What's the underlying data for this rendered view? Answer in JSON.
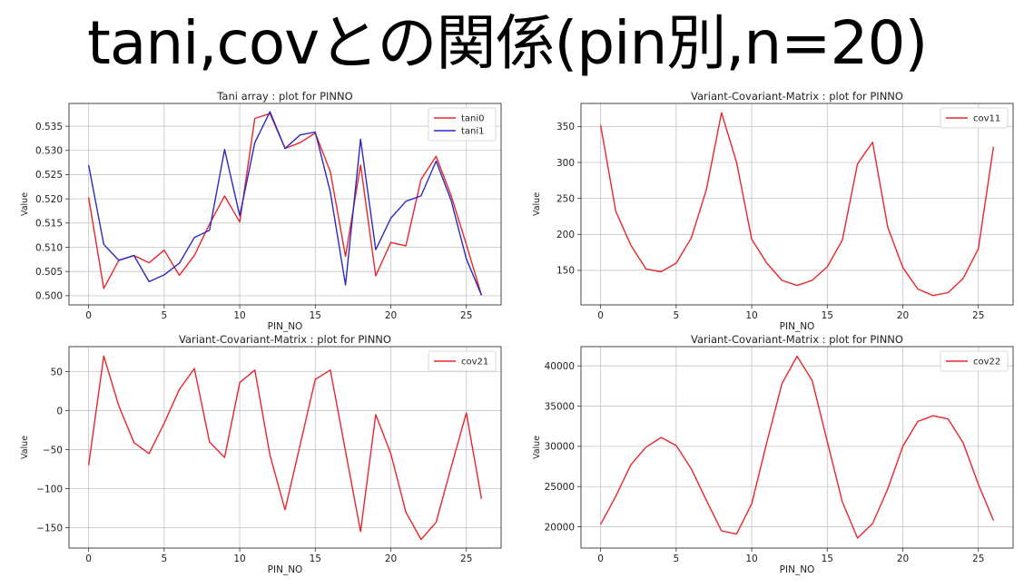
{
  "slide": {
    "title": "tani,covとの関係(pin別,n=20)"
  },
  "chart_data": [
    {
      "type": "line",
      "title": "Tani array : plot for PINNO",
      "xlabel": "PIN_NO",
      "ylabel": "Value",
      "xlim": [
        -1.3,
        27.3
      ],
      "ylim": [
        0.4981,
        0.5397
      ],
      "xticks": [
        0,
        5,
        10,
        15,
        20,
        25
      ],
      "yticks": [
        0.5,
        0.505,
        0.51,
        0.515,
        0.52,
        0.525,
        0.53,
        0.535
      ],
      "ytick_decimals": 3,
      "grid": true,
      "legend": "top-right",
      "x": [
        0,
        1,
        2,
        3,
        4,
        5,
        6,
        7,
        8,
        9,
        10,
        11,
        12,
        13,
        14,
        15,
        16,
        17,
        18,
        19,
        20,
        21,
        22,
        23,
        24,
        25,
        26
      ],
      "series": [
        {
          "name": "tani0",
          "color": "#e8262c",
          "values": [
            0.5203,
            0.5015,
            0.5073,
            0.5083,
            0.5068,
            0.5094,
            0.5042,
            0.5083,
            0.5148,
            0.5206,
            0.5152,
            0.5366,
            0.5376,
            0.5304,
            0.5316,
            0.5336,
            0.5256,
            0.5081,
            0.527,
            0.5041,
            0.511,
            0.5103,
            0.524,
            0.5288,
            0.5206,
            0.5106,
            0.5001
          ]
        },
        {
          "name": "tani1",
          "color": "#2a2ac2",
          "values": [
            0.527,
            0.5106,
            0.5073,
            0.5083,
            0.5029,
            0.5043,
            0.5067,
            0.512,
            0.5135,
            0.5302,
            0.5165,
            0.5316,
            0.538,
            0.5304,
            0.5332,
            0.5338,
            0.5214,
            0.5022,
            0.5323,
            0.5095,
            0.516,
            0.5195,
            0.5206,
            0.5278,
            0.5196,
            0.5076,
            0.5001
          ]
        }
      ]
    },
    {
      "type": "line",
      "title": "Variant-Covariant-Matrix : plot for PINNO",
      "xlabel": "PIN_NO",
      "ylabel": "Value",
      "xlim": [
        -1.3,
        27.3
      ],
      "ylim": [
        102,
        382
      ],
      "xticks": [
        0,
        5,
        10,
        15,
        20,
        25
      ],
      "yticks": [
        150,
        200,
        250,
        300,
        350
      ],
      "ytick_decimals": 0,
      "grid": true,
      "legend": "top-right",
      "x": [
        0,
        1,
        2,
        3,
        4,
        5,
        6,
        7,
        8,
        9,
        10,
        11,
        12,
        13,
        14,
        15,
        16,
        17,
        18,
        19,
        20,
        21,
        22,
        23,
        24,
        25,
        26
      ],
      "series": [
        {
          "name": "cov11",
          "color": "#e8262c",
          "values": [
            352,
            232,
            185,
            152,
            148,
            160,
            195,
            262,
            369,
            300,
            193,
            160,
            136,
            129,
            136,
            155,
            192,
            298,
            328,
            210,
            154,
            124,
            115,
            119,
            139,
            180,
            322
          ]
        }
      ]
    },
    {
      "type": "line",
      "title": "Variant-Covariant-Matrix : plot for PINNO",
      "xlabel": "PIN_NO",
      "ylabel": "Value",
      "xlim": [
        -1.3,
        27.3
      ],
      "ylim": [
        -176,
        82
      ],
      "xticks": [
        0,
        5,
        10,
        15,
        20,
        25
      ],
      "yticks": [
        -150,
        -100,
        -50,
        0,
        50
      ],
      "ytick_decimals": 0,
      "grid": true,
      "legend": "top-right",
      "x": [
        0,
        1,
        2,
        3,
        4,
        5,
        6,
        7,
        8,
        9,
        10,
        11,
        12,
        13,
        14,
        15,
        16,
        17,
        18,
        19,
        20,
        21,
        22,
        23,
        24,
        25,
        26
      ],
      "series": [
        {
          "name": "cov21",
          "color": "#e8262c",
          "values": [
            -70,
            70,
            6,
            -41,
            -55,
            -16,
            27,
            54,
            -40,
            -60,
            36,
            52,
            -57,
            -127,
            -44,
            40,
            52,
            -52,
            -155,
            -5,
            -55,
            -130,
            -165,
            -143,
            -72,
            -3,
            -113
          ]
        }
      ]
    },
    {
      "type": "line",
      "title": "Variant-Covariant-Matrix : plot for PINNO",
      "xlabel": "PIN_NO",
      "ylabel": "Value",
      "xlim": [
        -1.3,
        27.3
      ],
      "ylim": [
        17360,
        42390
      ],
      "xticks": [
        0,
        5,
        10,
        15,
        20,
        25
      ],
      "yticks": [
        20000,
        25000,
        30000,
        35000,
        40000
      ],
      "ytick_decimals": 0,
      "grid": true,
      "legend": "top-right",
      "x": [
        0,
        1,
        2,
        3,
        4,
        5,
        6,
        7,
        8,
        9,
        10,
        11,
        12,
        13,
        14,
        15,
        16,
        17,
        18,
        19,
        20,
        21,
        22,
        23,
        24,
        25,
        26
      ],
      "series": [
        {
          "name": "cov22",
          "color": "#e8262c",
          "values": [
            20300,
            23800,
            27700,
            29900,
            31100,
            30100,
            27200,
            23300,
            19500,
            19100,
            22900,
            30500,
            37800,
            41200,
            38200,
            30600,
            23100,
            18600,
            20400,
            24700,
            30000,
            33100,
            33800,
            33400,
            30400,
            25300,
            20800
          ]
        }
      ]
    }
  ]
}
